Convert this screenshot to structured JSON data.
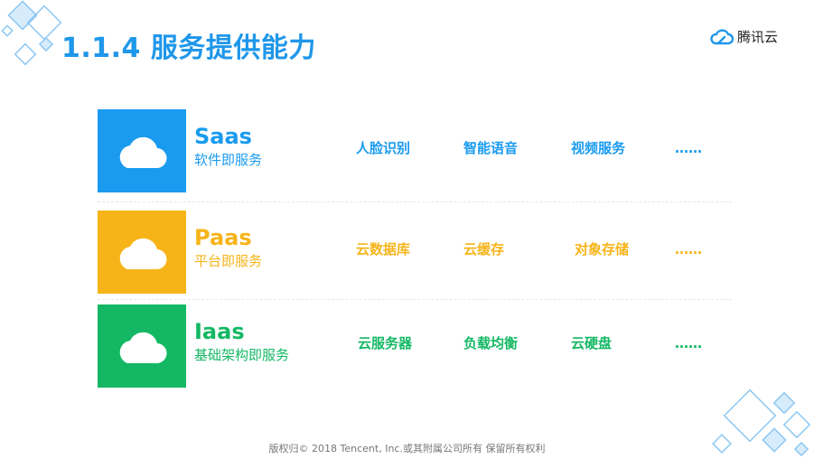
{
  "slide": {
    "title": "1.1.4 服务提供能力",
    "brand": "腾讯云",
    "footer": "版权归© 2018 Tencent, Inc.或其附属公司所有 保留所有权利"
  },
  "colors": {
    "title": "#1f97ea",
    "saas": "#1a9bf0",
    "paas": "#f6b419",
    "iaas": "#14b864"
  },
  "rows": [
    {
      "name": "Saas",
      "subtitle": "软件即服务",
      "items": [
        "人脸识别",
        "智能语音",
        "视频服务",
        "……"
      ]
    },
    {
      "name": "Paas",
      "subtitle": "平台即服务",
      "items": [
        "云数据库",
        "云缓存",
        "对象存储",
        "……"
      ]
    },
    {
      "name": "Iaas",
      "subtitle": "基础架构即服务",
      "items": [
        "云服务器",
        "负载均衡",
        "云硬盘",
        "……"
      ]
    }
  ]
}
